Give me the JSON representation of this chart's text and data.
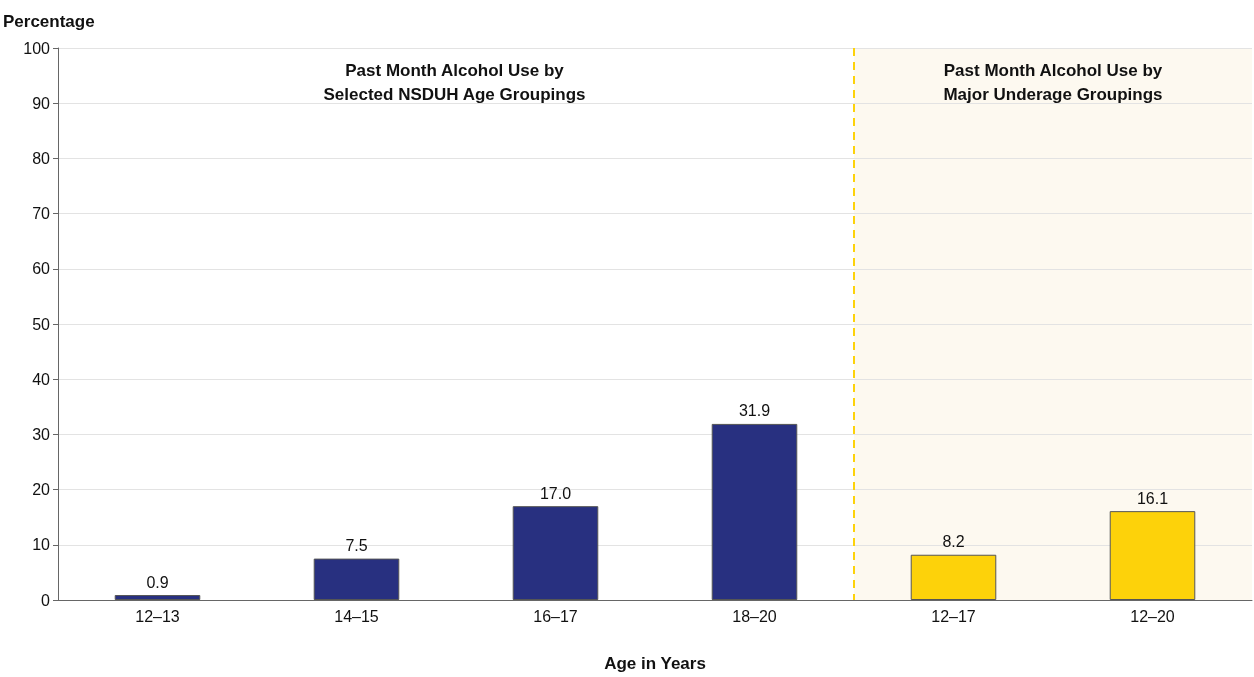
{
  "chart_data": {
    "type": "bar",
    "xlabel": "Age in Years",
    "ylabel": "Percentage",
    "categories": [
      "12–13",
      "14–15",
      "16–17",
      "18–20",
      "12–17",
      "12–20"
    ],
    "values": [
      0.9,
      7.5,
      17.0,
      31.9,
      8.2,
      16.1
    ],
    "colors": [
      "#283080",
      "#283080",
      "#283080",
      "#283080",
      "#fdd20a",
      "#fdd20a"
    ],
    "value_labels": [
      "0.9",
      "7.5",
      "17.0",
      "31.9",
      "8.2",
      "16.1"
    ],
    "ylim": [
      0,
      100
    ],
    "yticks": [
      0,
      10,
      20,
      30,
      40,
      50,
      60,
      70,
      80,
      90,
      100
    ],
    "grid": "y",
    "annotations": [
      "Past Month Alcohol Use by\nSelected NSDUH Age Groupings",
      "Past Month Alcohol Use by\nMajor Underage Groupings"
    ],
    "bands": [
      {
        "axis": "x",
        "from": "12–17",
        "to": "12–20",
        "color": "#fdf9f0"
      }
    ],
    "ref_lines": [
      {
        "axis": "x",
        "value": "12–17",
        "color": "#fdd20a",
        "line_style": "dashed"
      }
    ]
  }
}
